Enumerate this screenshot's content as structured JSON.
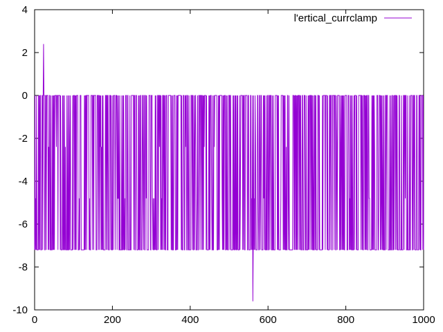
{
  "chart_data": {
    "type": "line",
    "title": "",
    "xlabel": "",
    "ylabel": "",
    "xlim": [
      0,
      1000
    ],
    "ylim": [
      -10,
      4
    ],
    "xticks": [
      0,
      200,
      400,
      600,
      800,
      1000
    ],
    "yticks": [
      4,
      2,
      0,
      -2,
      -4,
      -6,
      -8,
      -10
    ],
    "grid": false,
    "legend_position": "top-right",
    "series": [
      {
        "name": "l'ertical_currclamp",
        "color": "#9400d3",
        "baseline_high": 0,
        "baseline_low": -7.2,
        "intermediate_levels": [
          -2.4,
          -4.8
        ],
        "spikes": [
          {
            "x": 23,
            "y": 2.4
          },
          {
            "x": 561,
            "y": -9.6
          }
        ]
      }
    ]
  }
}
